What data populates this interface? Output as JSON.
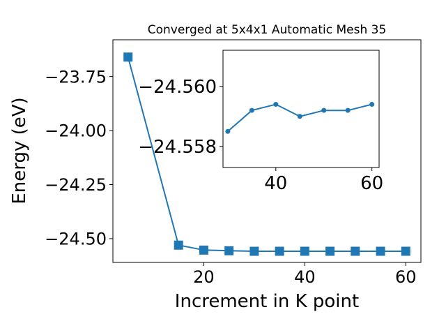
{
  "chart_data": [
    {
      "type": "line",
      "title": "Converged at 5x4x1 Automatic Mesh 35",
      "xlabel": "Increment in K point",
      "ylabel": "Energy (eV)",
      "xlim": [
        2,
        63
      ],
      "ylim": [
        -24.61,
        -23.58
      ],
      "xticks": [
        20,
        40,
        60
      ],
      "yticks": [
        -23.75,
        -24.0,
        -24.25,
        -24.5
      ],
      "ytick_labels": [
        "−23.75",
        "−24.00",
        "−24.25",
        "−24.50"
      ],
      "grid": false,
      "color": "#1f77b4",
      "marker": "square",
      "x": [
        5,
        15,
        20,
        25,
        30,
        35,
        40,
        45,
        50,
        55,
        60
      ],
      "y": [
        -23.66,
        -24.53,
        -24.553,
        -24.556,
        -24.5585,
        -24.5584,
        -24.5583,
        -24.5584,
        -24.5584,
        -24.5584,
        -24.5583
      ]
    },
    {
      "type": "line",
      "title": "",
      "xlabel": "",
      "ylabel": "",
      "xlim": [
        29,
        61.5
      ],
      "ylim": [
        -24.5573,
        -24.5612
      ],
      "xticks": [
        40,
        60
      ],
      "yticks": [
        -24.56,
        -24.558
      ],
      "ytick_labels": [
        "−24.560",
        "−24.558"
      ],
      "grid": false,
      "color": "#1f77b4",
      "marker": "circle",
      "x": [
        30,
        35,
        40,
        45,
        50,
        55,
        60
      ],
      "y": [
        -24.5585,
        -24.5592,
        -24.5594,
        -24.559,
        -24.5592,
        -24.5592,
        -24.5594
      ]
    }
  ]
}
